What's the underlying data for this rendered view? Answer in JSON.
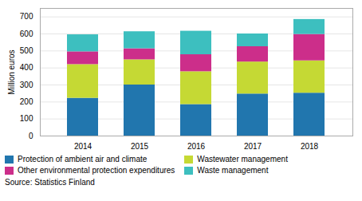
{
  "chart_data": {
    "type": "bar",
    "stacked": true,
    "ylabel": "Million euros",
    "categories": [
      "2014",
      "2015",
      "2016",
      "2017",
      "2018"
    ],
    "series": [
      {
        "name": "Protection of ambient air and climate",
        "color": "#2176AE",
        "values": [
          222,
          300,
          185,
          247,
          252
        ]
      },
      {
        "name": "Wastewater management",
        "color": "#C5D934",
        "values": [
          198,
          148,
          193,
          188,
          190
        ]
      },
      {
        "name": "Other environmental protection expenditures",
        "color": "#CC2E8A",
        "values": [
          75,
          65,
          100,
          90,
          155
        ]
      },
      {
        "name": "Waste management",
        "color": "#3DBFBF",
        "values": [
          100,
          100,
          138,
          75,
          88
        ]
      }
    ],
    "ylim": [
      0,
      750
    ],
    "yticks": [
      0,
      100,
      200,
      300,
      400,
      500,
      600,
      700
    ],
    "grid": true,
    "legend": "bottom",
    "source": "Source: Statistics Finland"
  }
}
